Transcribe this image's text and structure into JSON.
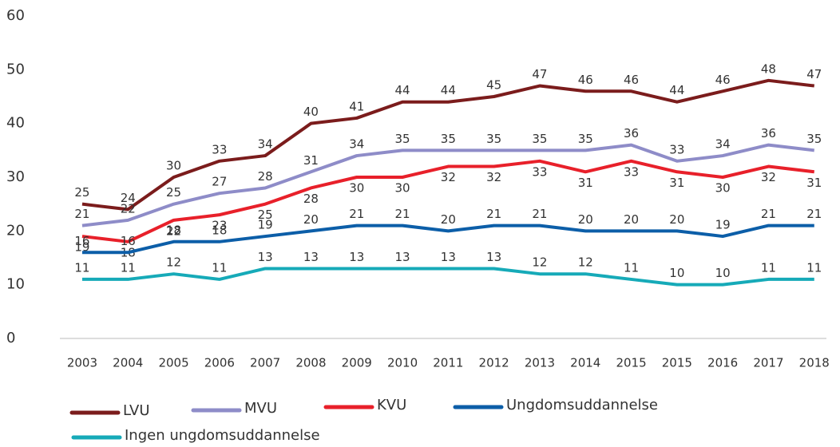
{
  "chart_data": {
    "type": "line",
    "categories": [
      "2003",
      "2004",
      "2005",
      "2006",
      "2007",
      "2008",
      "2009",
      "2010",
      "2011",
      "2012",
      "2013",
      "2014",
      "2015",
      "2015",
      "2016",
      "2017",
      "2018"
    ],
    "series": [
      {
        "name": "LVU",
        "color": "#7b1c1c",
        "values": [
          25,
          24,
          30,
          33,
          34,
          40,
          41,
          44,
          44,
          45,
          47,
          46,
          46,
          44,
          46,
          48,
          47
        ]
      },
      {
        "name": "MVU",
        "color": "#8e8cc8",
        "values": [
          21,
          22,
          25,
          27,
          28,
          31,
          34,
          35,
          35,
          35,
          35,
          35,
          36,
          33,
          34,
          36,
          35
        ]
      },
      {
        "name": "KVU",
        "color": "#e8202a",
        "values": [
          19,
          18,
          22,
          23,
          25,
          28,
          30,
          30,
          32,
          32,
          33,
          31,
          33,
          31,
          30,
          32,
          31
        ]
      },
      {
        "name": "Ungdomsuddannelse",
        "color": "#0c5ea8",
        "values": [
          16,
          16,
          18,
          18,
          19,
          20,
          21,
          21,
          20,
          21,
          21,
          20,
          20,
          20,
          19,
          21,
          21
        ]
      },
      {
        "name": "Ingen ungdomsuddannelse",
        "color": "#16aab8",
        "values": [
          11,
          11,
          12,
          11,
          13,
          13,
          13,
          13,
          13,
          13,
          12,
          12,
          11,
          10,
          10,
          11,
          11
        ]
      }
    ],
    "ylim": [
      0,
      60
    ],
    "yticks": [
      0,
      10,
      20,
      30,
      40,
      50,
      60
    ],
    "grid": false,
    "legend": "bottom"
  }
}
